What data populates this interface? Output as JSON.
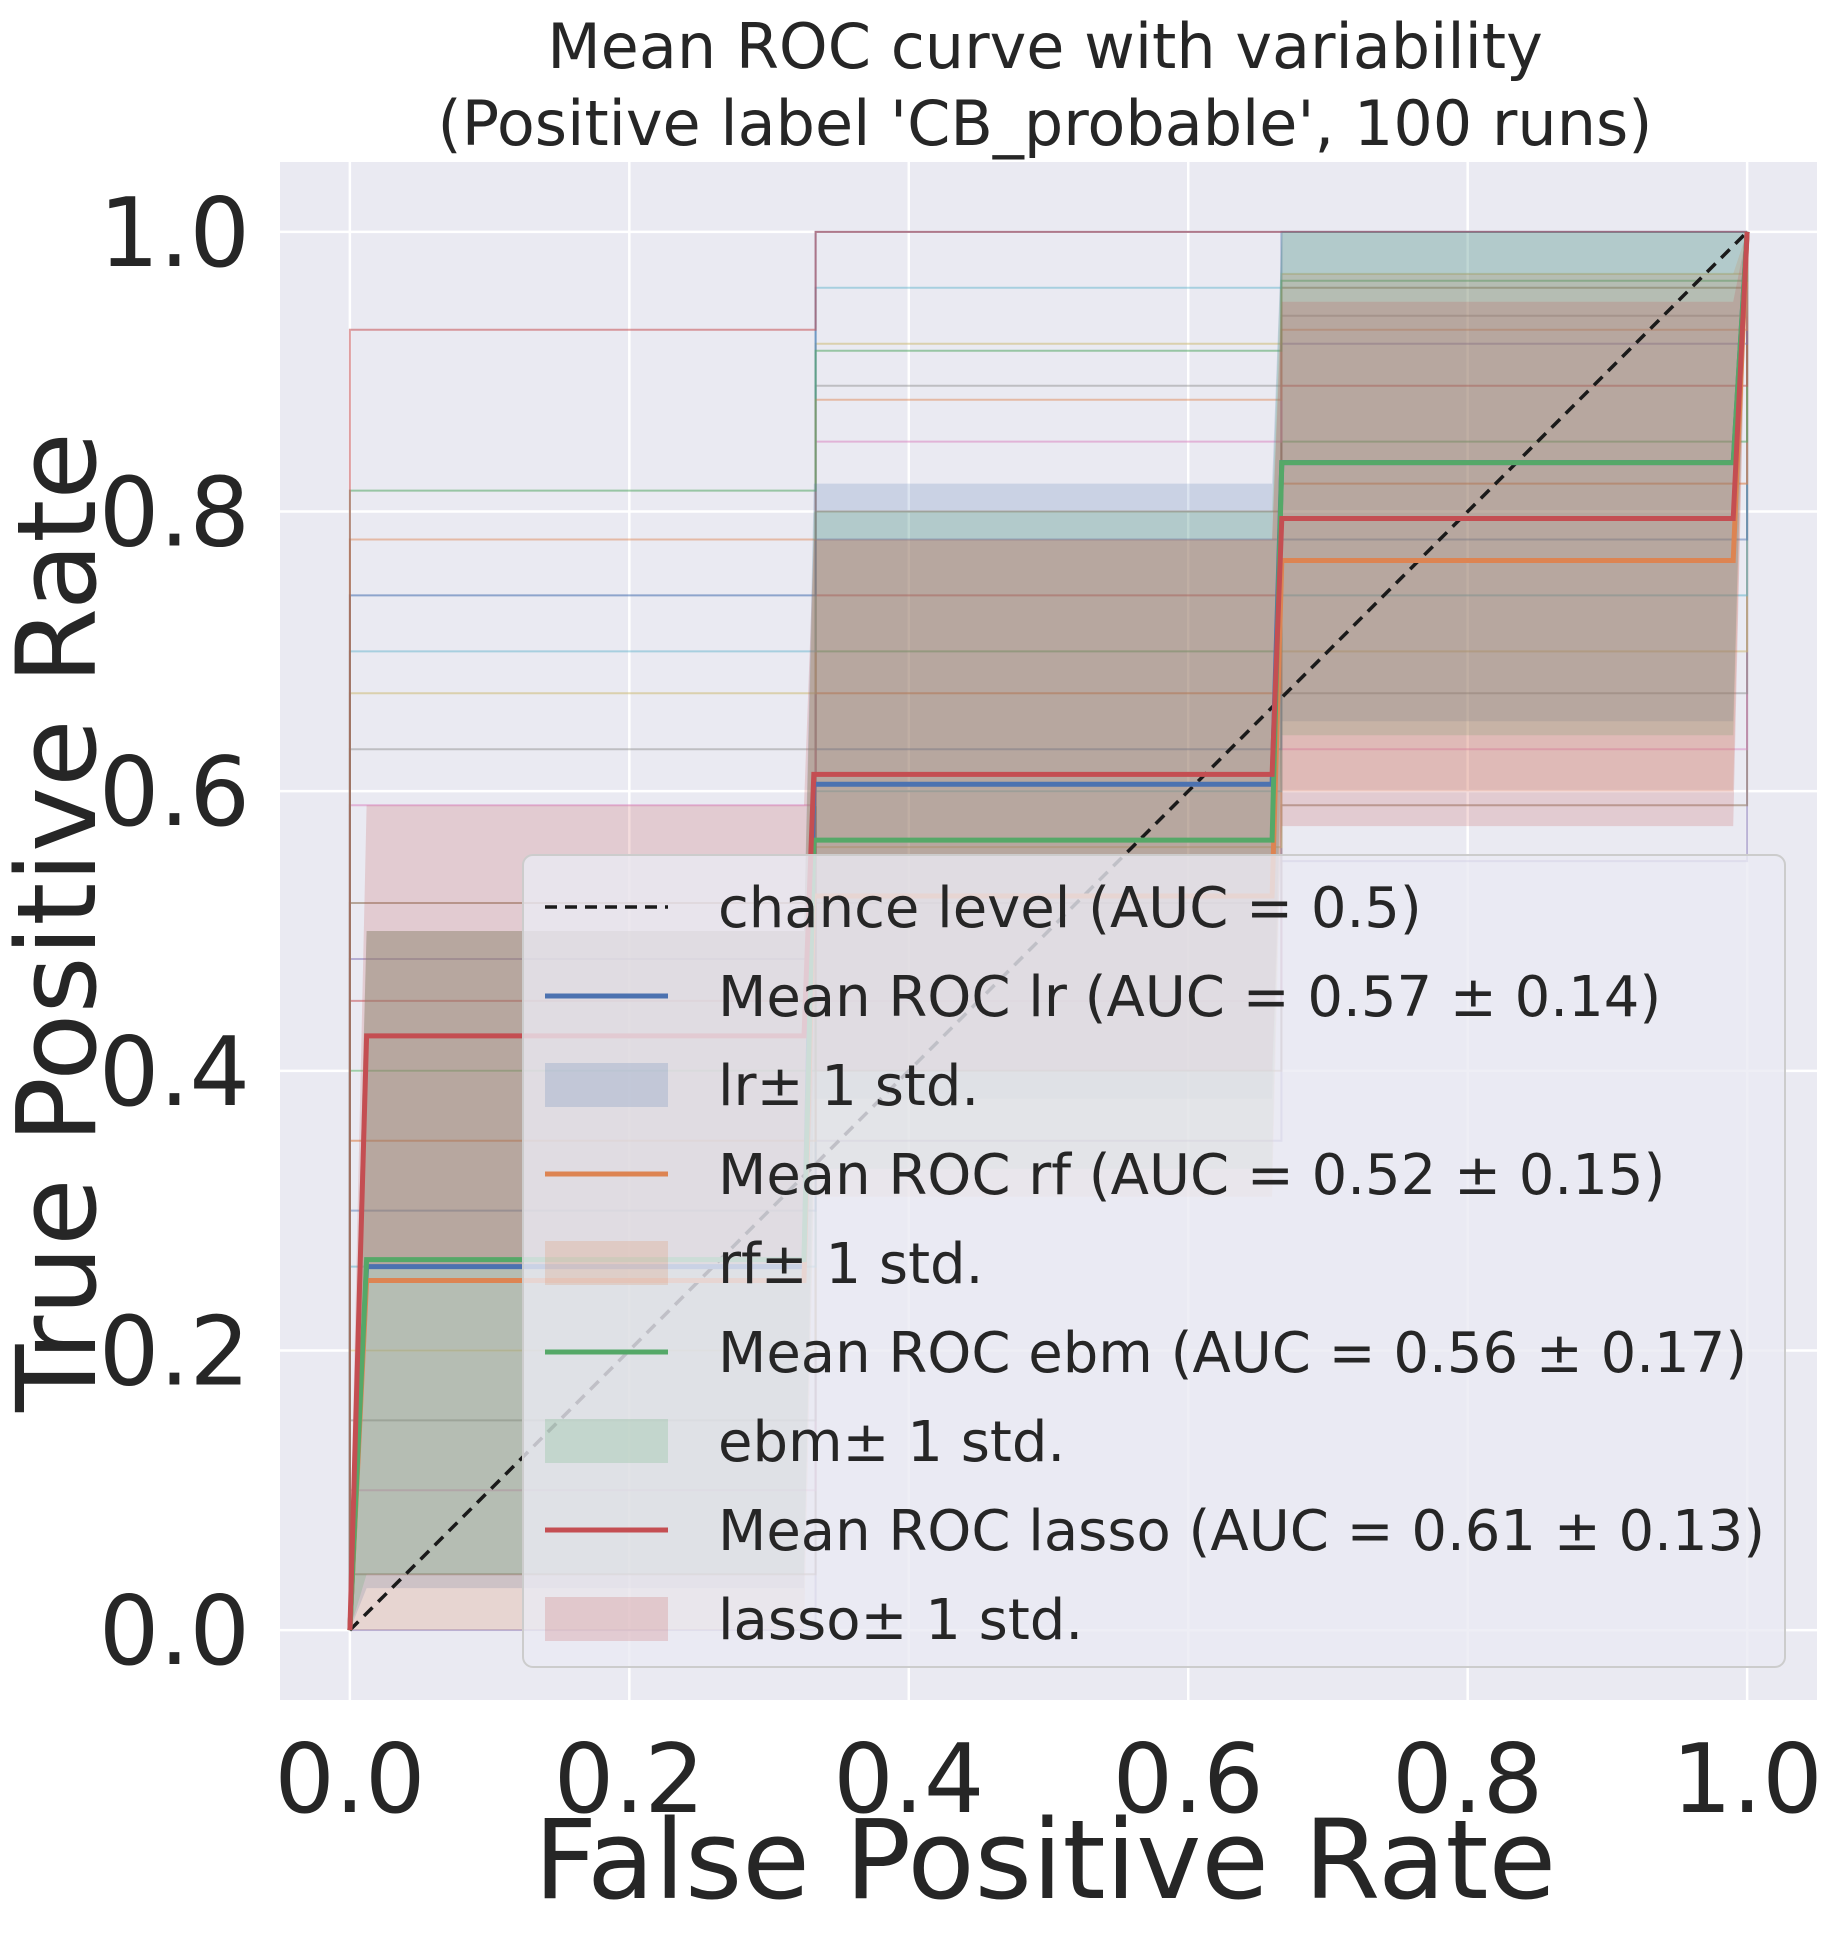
{
  "chart_data": {
    "type": "line",
    "title": "Mean ROC curve with variability",
    "subtitle": "(Positive label 'CB_probable', 100 runs)",
    "xlabel": "False Positive Rate",
    "ylabel": "True Positive Rate",
    "xlim": [
      -0.05,
      1.05
    ],
    "ylim": [
      -0.05,
      1.05
    ],
    "xticks": [
      "0.0",
      "0.2",
      "0.4",
      "0.6",
      "0.8",
      "1.0"
    ],
    "yticks": [
      "0.0",
      "0.2",
      "0.4",
      "0.6",
      "0.8",
      "1.0"
    ],
    "xtick_values": [
      0,
      0.2,
      0.4,
      0.6,
      0.8,
      1.0
    ],
    "ytick_values": [
      0,
      0.2,
      0.4,
      0.6,
      0.8,
      1.0
    ],
    "grid": true,
    "legend_position": "lower-right",
    "background": "#eaeaf2",
    "chance_level": {
      "name": "chance level (AUC = 0.5)",
      "x": [
        0,
        1
      ],
      "y": [
        0,
        1
      ],
      "color": "#1a1a1a"
    },
    "series": [
      {
        "name": "Mean ROC lr (AUC = 0.57 ± 0.14)",
        "band_name": " lr± 1 std.",
        "color": "#4c72b0",
        "x": [
          0,
          0.012,
          0.325,
          0.332,
          0.66,
          0.667,
          0.99,
          1.0
        ],
        "y": [
          0,
          0.26,
          0.26,
          0.605,
          0.605,
          0.835,
          0.835,
          1.0
        ],
        "upper": [
          0.04,
          0.5,
          0.5,
          0.82,
          0.82,
          1.0,
          1.0,
          1.0
        ],
        "lower": [
          0,
          0.03,
          0.03,
          0.38,
          0.38,
          0.65,
          0.65,
          1.0
        ]
      },
      {
        "name": "Mean ROC rf (AUC = 0.52 ± 0.15)",
        "band_name": " rf± 1 std.",
        "color": "#dd8452",
        "x": [
          0,
          0.012,
          0.325,
          0.332,
          0.66,
          0.667,
          0.99,
          1.0
        ],
        "y": [
          0,
          0.25,
          0.25,
          0.525,
          0.525,
          0.765,
          0.765,
          1.0
        ],
        "upper": [
          0.03,
          0.5,
          0.5,
          0.78,
          0.78,
          0.97,
          0.97,
          1.0
        ],
        "lower": [
          0,
          0.0,
          0.0,
          0.31,
          0.31,
          0.6,
          0.6,
          1.0
        ]
      },
      {
        "name": "Mean ROC ebm (AUC = 0.56 ± 0.17)",
        "band_name": " ebm± 1 std.",
        "color": "#55a868",
        "x": [
          0,
          0.012,
          0.325,
          0.332,
          0.66,
          0.667,
          0.99,
          1.0
        ],
        "y": [
          0,
          0.265,
          0.265,
          0.565,
          0.565,
          0.835,
          0.835,
          1.0
        ],
        "upper": [
          0.05,
          0.5,
          0.5,
          0.8,
          0.8,
          1.0,
          1.0,
          1.0
        ],
        "lower": [
          0,
          0.04,
          0.04,
          0.33,
          0.33,
          0.64,
          0.64,
          1.0
        ]
      },
      {
        "name": "Mean ROC lasso (AUC = 0.61 ± 0.13)",
        "band_name": " lasso± 1 std.",
        "color": "#c44e52",
        "x": [
          0,
          0.012,
          0.325,
          0.332,
          0.66,
          0.667,
          0.99,
          1.0
        ],
        "y": [
          0,
          0.425,
          0.425,
          0.612,
          0.612,
          0.795,
          0.795,
          1.0
        ],
        "upper": [
          0.05,
          0.59,
          0.59,
          0.78,
          0.78,
          0.95,
          0.95,
          1.0
        ],
        "lower": [
          0,
          0.26,
          0.26,
          0.4,
          0.4,
          0.575,
          0.575,
          1.0
        ]
      }
    ]
  }
}
